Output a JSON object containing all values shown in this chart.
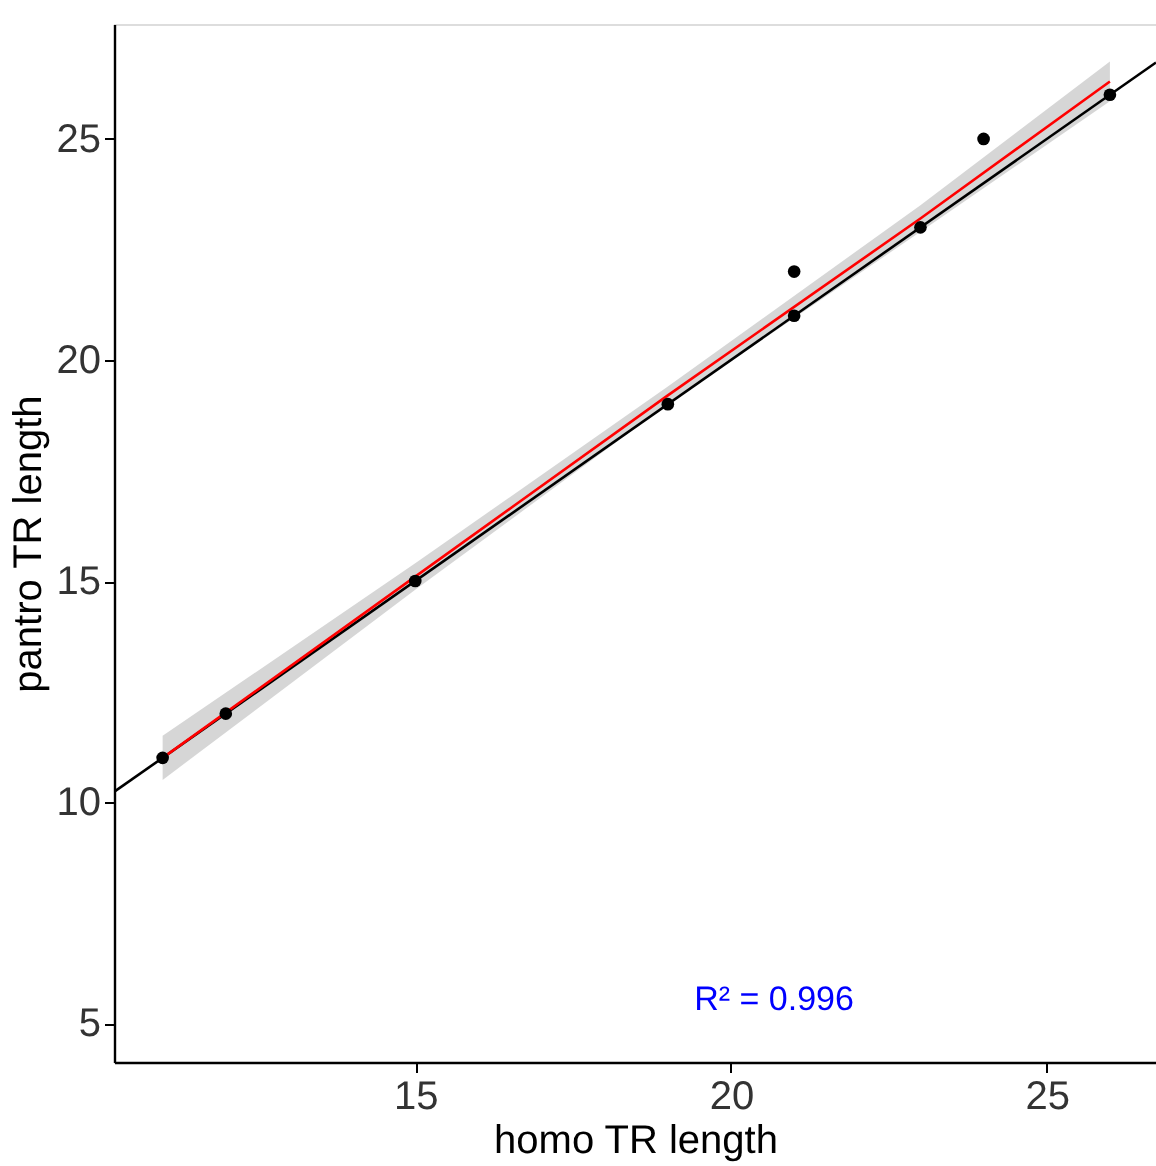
{
  "chart_data": {
    "type": "scatter",
    "xlabel": "homo TR length",
    "ylabel": "pantro TR length",
    "xlim": [
      10.23,
      26.73
    ],
    "ylim": [
      4.12,
      27.6
    ],
    "xticks": [
      15,
      20,
      25
    ],
    "yticks": [
      5,
      10,
      15,
      20,
      25
    ],
    "grid": false,
    "marker": "circle",
    "line_style": "solid",
    "annotations": [
      "R² = 0.996"
    ],
    "series": [
      {
        "type": "line",
        "marker": "none",
        "color": "#000000",
        "x": [
          10.23,
          26.73
        ],
        "values": [
          10.23,
          26.73
        ]
      },
      {
        "type": "line",
        "marker": "none",
        "color": "#ff0000",
        "x": [
          11,
          15,
          19,
          23,
          26
        ],
        "values": [
          11.0,
          15.1,
          19.2,
          23.2,
          26.3
        ],
        "lower": [
          10.5,
          14.8,
          19.0,
          22.9,
          25.85
        ],
        "upper": [
          11.5,
          15.4,
          19.4,
          23.5,
          26.75
        ]
      },
      {
        "color": "#000000",
        "x": [
          11,
          12,
          15,
          19,
          21,
          21,
          23,
          24,
          26
        ],
        "values": [
          11,
          12,
          15,
          19,
          21,
          22,
          23,
          25,
          26
        ]
      }
    ]
  }
}
